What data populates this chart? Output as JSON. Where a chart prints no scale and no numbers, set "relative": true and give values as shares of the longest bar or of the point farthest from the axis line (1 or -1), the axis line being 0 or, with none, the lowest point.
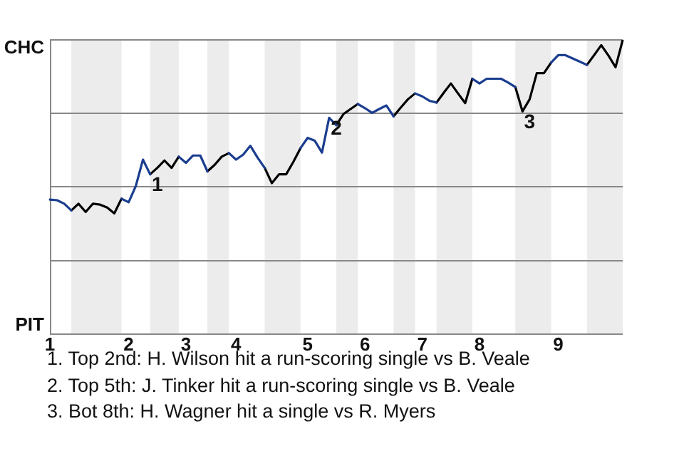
{
  "chart_data": {
    "type": "line",
    "relative": true,
    "categories": [
      "1",
      null,
      null,
      null,
      null,
      null,
      null,
      null,
      null,
      null,
      null,
      "2",
      null,
      null,
      null,
      null,
      null,
      null,
      null,
      "3",
      null,
      null,
      null,
      null,
      null,
      null,
      "4",
      null,
      null,
      null,
      null,
      null,
      null,
      null,
      null,
      null,
      "5",
      null,
      null,
      null,
      null,
      null,
      null,
      null,
      "6",
      null,
      null,
      null,
      null,
      null,
      null,
      null,
      "7",
      null,
      null,
      null,
      null,
      null,
      null,
      null,
      "8",
      null,
      null,
      null,
      null,
      null,
      null,
      null,
      null,
      null,
      null,
      "9",
      null,
      null,
      null,
      null,
      null,
      null,
      null,
      null,
      null
    ],
    "grid": "y",
    "series": [
      {
        "color": "#1a3d8f",
        "values": [
          0.457,
          0.455,
          0.443,
          0.42,
          null,
          null,
          null,
          null,
          null,
          null,
          0.46,
          0.448,
          0.503,
          0.593,
          0.543,
          null,
          null,
          null,
          0.603,
          0.582,
          0.607,
          0.607,
          0.553,
          null,
          null,
          0.615,
          0.593,
          0.61,
          0.64,
          0.6,
          0.565,
          null,
          null,
          null,
          null,
          0.632,
          0.667,
          0.657,
          0.617,
          0.735,
          0.71,
          null,
          null,
          0.782,
          0.768,
          0.752,
          0.765,
          0.777,
          0.74,
          null,
          null,
          0.818,
          0.808,
          0.793,
          0.787,
          null,
          null,
          null,
          null,
          0.868,
          0.852,
          0.868,
          0.868,
          0.868,
          0.855,
          0.84,
          null,
          null,
          null,
          null,
          0.923,
          0.948,
          0.948,
          0.937,
          0.926,
          0.915,
          null,
          null,
          null,
          null,
          null
        ]
      },
      {
        "color": "#000000",
        "values": [
          null,
          null,
          null,
          0.42,
          0.443,
          0.415,
          0.443,
          0.44,
          0.43,
          0.41,
          0.46,
          null,
          null,
          null,
          0.543,
          0.565,
          0.59,
          0.565,
          0.603,
          null,
          null,
          null,
          0.553,
          0.575,
          0.603,
          0.615,
          null,
          null,
          null,
          null,
          0.565,
          0.513,
          0.543,
          0.543,
          0.585,
          0.632,
          null,
          null,
          null,
          null,
          0.71,
          0.748,
          0.765,
          0.782,
          null,
          null,
          null,
          null,
          0.74,
          0.77,
          0.798,
          0.818,
          null,
          null,
          0.787,
          0.82,
          0.852,
          0.818,
          0.785,
          0.868,
          null,
          null,
          null,
          null,
          null,
          0.84,
          0.757,
          0.798,
          0.887,
          0.887,
          0.923,
          null,
          null,
          null,
          null,
          0.915,
          0.948,
          0.982,
          0.947,
          0.907,
          1
        ]
      }
    ],
    "annotations": [
      "CHC",
      "PIT",
      {
        "text": "1",
        "y": 0.543
      },
      {
        "text": "2",
        "y": 0.735
      },
      {
        "text": "3",
        "y": 0.757
      },
      "1. Top 2nd: H. Wilson hit a run-scoring single vs B. Veale",
      "2. Top 5th: J. Tinker hit a run-scoring single vs B. Veale",
      "3. Bot 8th: H. Wagner hit a single vs R. Myers"
    ]
  }
}
